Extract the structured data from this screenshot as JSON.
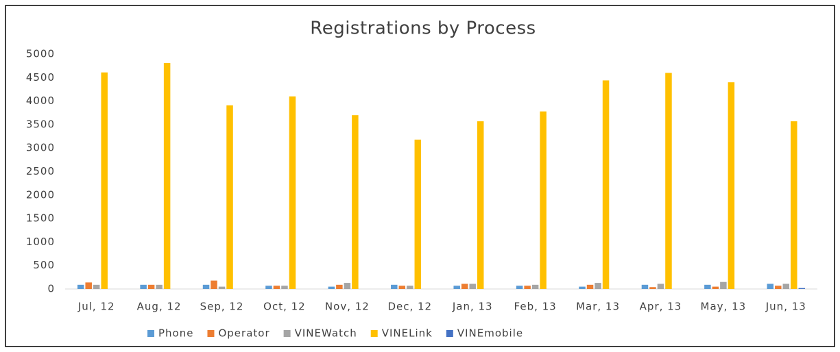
{
  "chart_data": {
    "type": "bar",
    "title": "Registrations by Process",
    "categories": [
      "Jul, 12",
      "Aug, 12",
      "Sep, 12",
      "Oct, 12",
      "Nov, 12",
      "Dec, 12",
      "Jan, 13",
      "Feb, 13",
      "Mar, 13",
      "Apr, 13",
      "May, 13",
      "Jun, 13"
    ],
    "series": [
      {
        "name": "Phone",
        "color": "#5b9bd5",
        "values": [
          90,
          90,
          90,
          70,
          50,
          90,
          70,
          70,
          50,
          90,
          90,
          110
        ]
      },
      {
        "name": "Operator",
        "color": "#ed7d31",
        "values": [
          140,
          90,
          180,
          70,
          90,
          70,
          110,
          70,
          90,
          40,
          50,
          70
        ]
      },
      {
        "name": "VINEWatch",
        "color": "#a5a5a5",
        "values": [
          90,
          90,
          50,
          70,
          130,
          70,
          110,
          90,
          130,
          110,
          150,
          110
        ]
      },
      {
        "name": "VINELink",
        "color": "#ffc000",
        "values": [
          4610,
          4810,
          3910,
          4100,
          3700,
          3180,
          3570,
          3780,
          4440,
          4600,
          4400,
          3570
        ]
      },
      {
        "name": "VINEmobile",
        "color": "#4472c4",
        "values": [
          0,
          0,
          0,
          0,
          0,
          0,
          0,
          0,
          0,
          0,
          0,
          20
        ]
      }
    ],
    "ylim": [
      0,
      5000
    ],
    "yticks": [
      0,
      500,
      1000,
      1500,
      2000,
      2500,
      3000,
      3500,
      4000,
      4500,
      5000
    ],
    "grid": false,
    "legend": "bottom"
  }
}
